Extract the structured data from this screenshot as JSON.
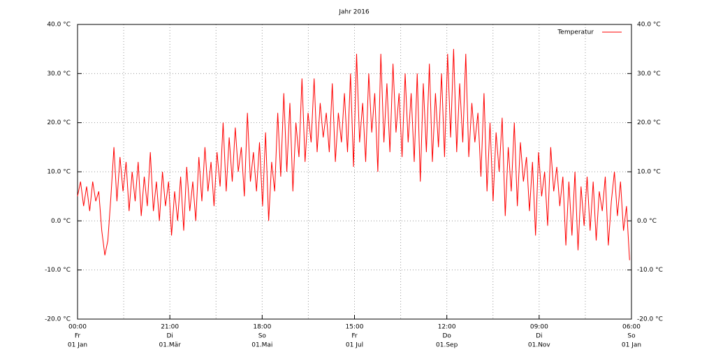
{
  "chart_data": {
    "type": "line",
    "title": "Jahr 2016",
    "x": [
      0,
      2,
      4,
      6,
      8,
      10,
      12,
      14,
      16,
      18,
      20,
      22,
      24,
      26,
      28,
      30,
      32,
      34,
      36,
      38,
      40,
      42,
      44,
      46,
      48,
      50,
      52,
      54,
      56,
      58,
      60,
      62,
      64,
      66,
      68,
      70,
      72,
      74,
      76,
      78,
      80,
      82,
      84,
      86,
      88,
      90,
      92,
      94,
      96,
      98,
      100,
      102,
      104,
      106,
      108,
      110,
      112,
      114,
      116,
      118,
      120,
      122,
      124,
      126,
      128,
      130,
      132,
      134,
      136,
      138,
      140,
      142,
      144,
      146,
      148,
      150,
      152,
      154,
      156,
      158,
      160,
      162,
      164,
      166,
      168,
      170,
      172,
      174,
      176,
      178,
      180,
      182,
      184,
      186,
      188,
      190,
      192,
      194,
      196,
      198,
      200,
      202,
      204,
      206,
      208,
      210,
      212,
      214,
      216,
      218,
      220,
      222,
      224,
      226,
      228,
      230,
      232,
      234,
      236,
      238,
      240,
      242,
      244,
      246,
      248,
      250,
      252,
      254,
      256,
      258,
      260,
      262,
      264,
      266,
      268,
      270,
      272,
      274,
      276,
      278,
      280,
      282,
      284,
      286,
      288,
      290,
      292,
      294,
      296,
      298,
      300,
      302,
      304,
      306,
      308,
      310,
      312,
      314,
      316,
      318,
      320,
      322,
      324,
      326,
      328,
      330,
      332,
      334,
      336,
      338,
      340,
      342,
      344,
      346,
      348,
      350,
      352,
      354,
      356,
      358,
      360,
      362,
      364
    ],
    "series": [
      {
        "name": "Temperatur",
        "color": "#ff0000",
        "values": [
          5,
          8,
          3,
          7,
          2,
          8,
          4,
          6,
          -2,
          -7,
          -4,
          5,
          15,
          4,
          13,
          6,
          12,
          2,
          10,
          4,
          12,
          1,
          9,
          3,
          14,
          2,
          8,
          0,
          10,
          3,
          8,
          -3,
          6,
          0,
          9,
          -2,
          11,
          2,
          8,
          0,
          13,
          4,
          15,
          6,
          12,
          3,
          14,
          7,
          20,
          6,
          17,
          8,
          19,
          10,
          15,
          5,
          22,
          8,
          14,
          6,
          16,
          3,
          18,
          0,
          12,
          6,
          22,
          9,
          26,
          10,
          24,
          6,
          20,
          13,
          29,
          12,
          22,
          16,
          29,
          14,
          24,
          17,
          22,
          14,
          28,
          12,
          22,
          16,
          26,
          14,
          30,
          11,
          34,
          16,
          24,
          12,
          30,
          18,
          26,
          10,
          34,
          16,
          28,
          14,
          32,
          18,
          26,
          13,
          30,
          16,
          26,
          12,
          30,
          8,
          28,
          14,
          32,
          12,
          26,
          15,
          30,
          13,
          34,
          17,
          35,
          14,
          28,
          16,
          34,
          13,
          24,
          16,
          22,
          9,
          26,
          6,
          20,
          4,
          18,
          10,
          21,
          1,
          15,
          6,
          20,
          3,
          16,
          8,
          13,
          2,
          12,
          -3,
          14,
          5,
          10,
          -1,
          15,
          6,
          11,
          3,
          9,
          -5,
          8,
          -3,
          10,
          -6,
          7,
          -1,
          9,
          -2,
          8,
          -4,
          6,
          2,
          9,
          -5,
          4,
          10,
          1,
          8,
          -2,
          3,
          -8
        ]
      }
    ],
    "xlim": [
      0,
      365.25
    ],
    "xticks": [
      {
        "value": 0,
        "label": [
          "00:00",
          "Fr",
          "01 Jan"
        ]
      },
      {
        "value": 60.875,
        "label": [
          "21:00",
          "Di",
          "01.Mär"
        ]
      },
      {
        "value": 121.75,
        "label": [
          "18:00",
          "So",
          "01.Mai"
        ]
      },
      {
        "value": 182.625,
        "label": [
          "15:00",
          "Fr",
          "01 Jul"
        ]
      },
      {
        "value": 243.5,
        "label": [
          "12:00",
          "Do",
          "01.Sep"
        ]
      },
      {
        "value": 304.375,
        "label": [
          "09:00",
          "Di",
          "01.Nov"
        ]
      },
      {
        "value": 365.25,
        "label": [
          "06:00",
          "So",
          "01 Jan"
        ]
      }
    ],
    "ylim": [
      -20,
      40
    ],
    "yticks": [
      {
        "value": -20,
        "label": "-20.0 °C"
      },
      {
        "value": -10,
        "label": "-10.0 °C"
      },
      {
        "value": 0,
        "label": "0.0 °C"
      },
      {
        "value": 10,
        "label": "10.0 °C"
      },
      {
        "value": 20,
        "label": "20.0 °C"
      },
      {
        "value": 30,
        "label": "30.0 °C"
      },
      {
        "value": 40,
        "label": "40.0 °C"
      }
    ],
    "grid": true,
    "minor_x_grid": true,
    "legend": "upper right"
  }
}
